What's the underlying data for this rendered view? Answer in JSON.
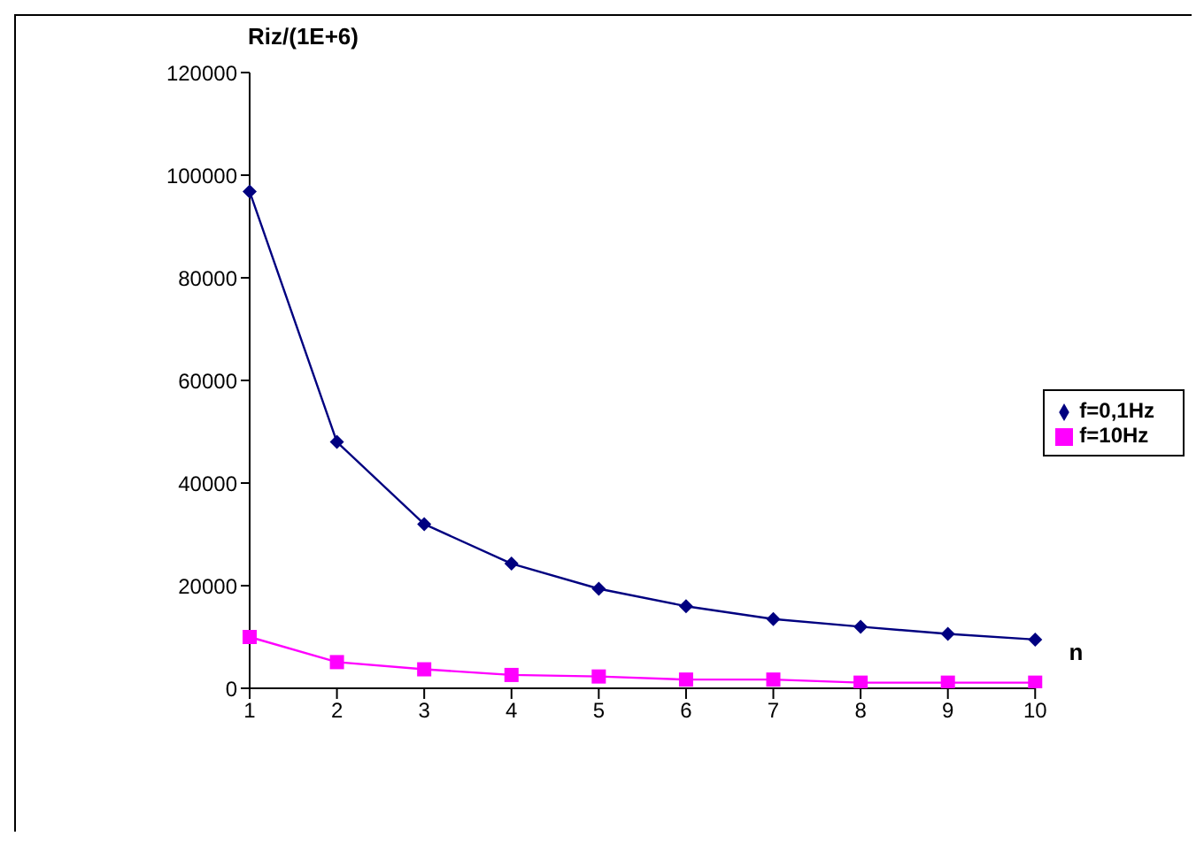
{
  "chart_data": {
    "type": "line",
    "xlabel": "n",
    "ylabel": "Riz/(1E+6)",
    "categories": [
      "1",
      "2",
      "3",
      "4",
      "5",
      "6",
      "7",
      "8",
      "9",
      "10"
    ],
    "series": [
      {
        "name": "f=0,1Hz",
        "color": "#000080",
        "marker": "diamond",
        "values": [
          96800,
          48000,
          32000,
          24300,
          19400,
          16000,
          13500,
          12000,
          10600,
          9500
        ]
      },
      {
        "name": "f=10Hz",
        "color": "#ff00ff",
        "marker": "square",
        "values": [
          10000,
          5100,
          3700,
          2600,
          2300,
          1700,
          1700,
          1100,
          1100,
          1100
        ]
      }
    ],
    "ylim": [
      0,
      120000
    ],
    "yticks": [
      0,
      20000,
      40000,
      60000,
      80000,
      100000,
      120000
    ],
    "grid": false,
    "legend": "right"
  }
}
